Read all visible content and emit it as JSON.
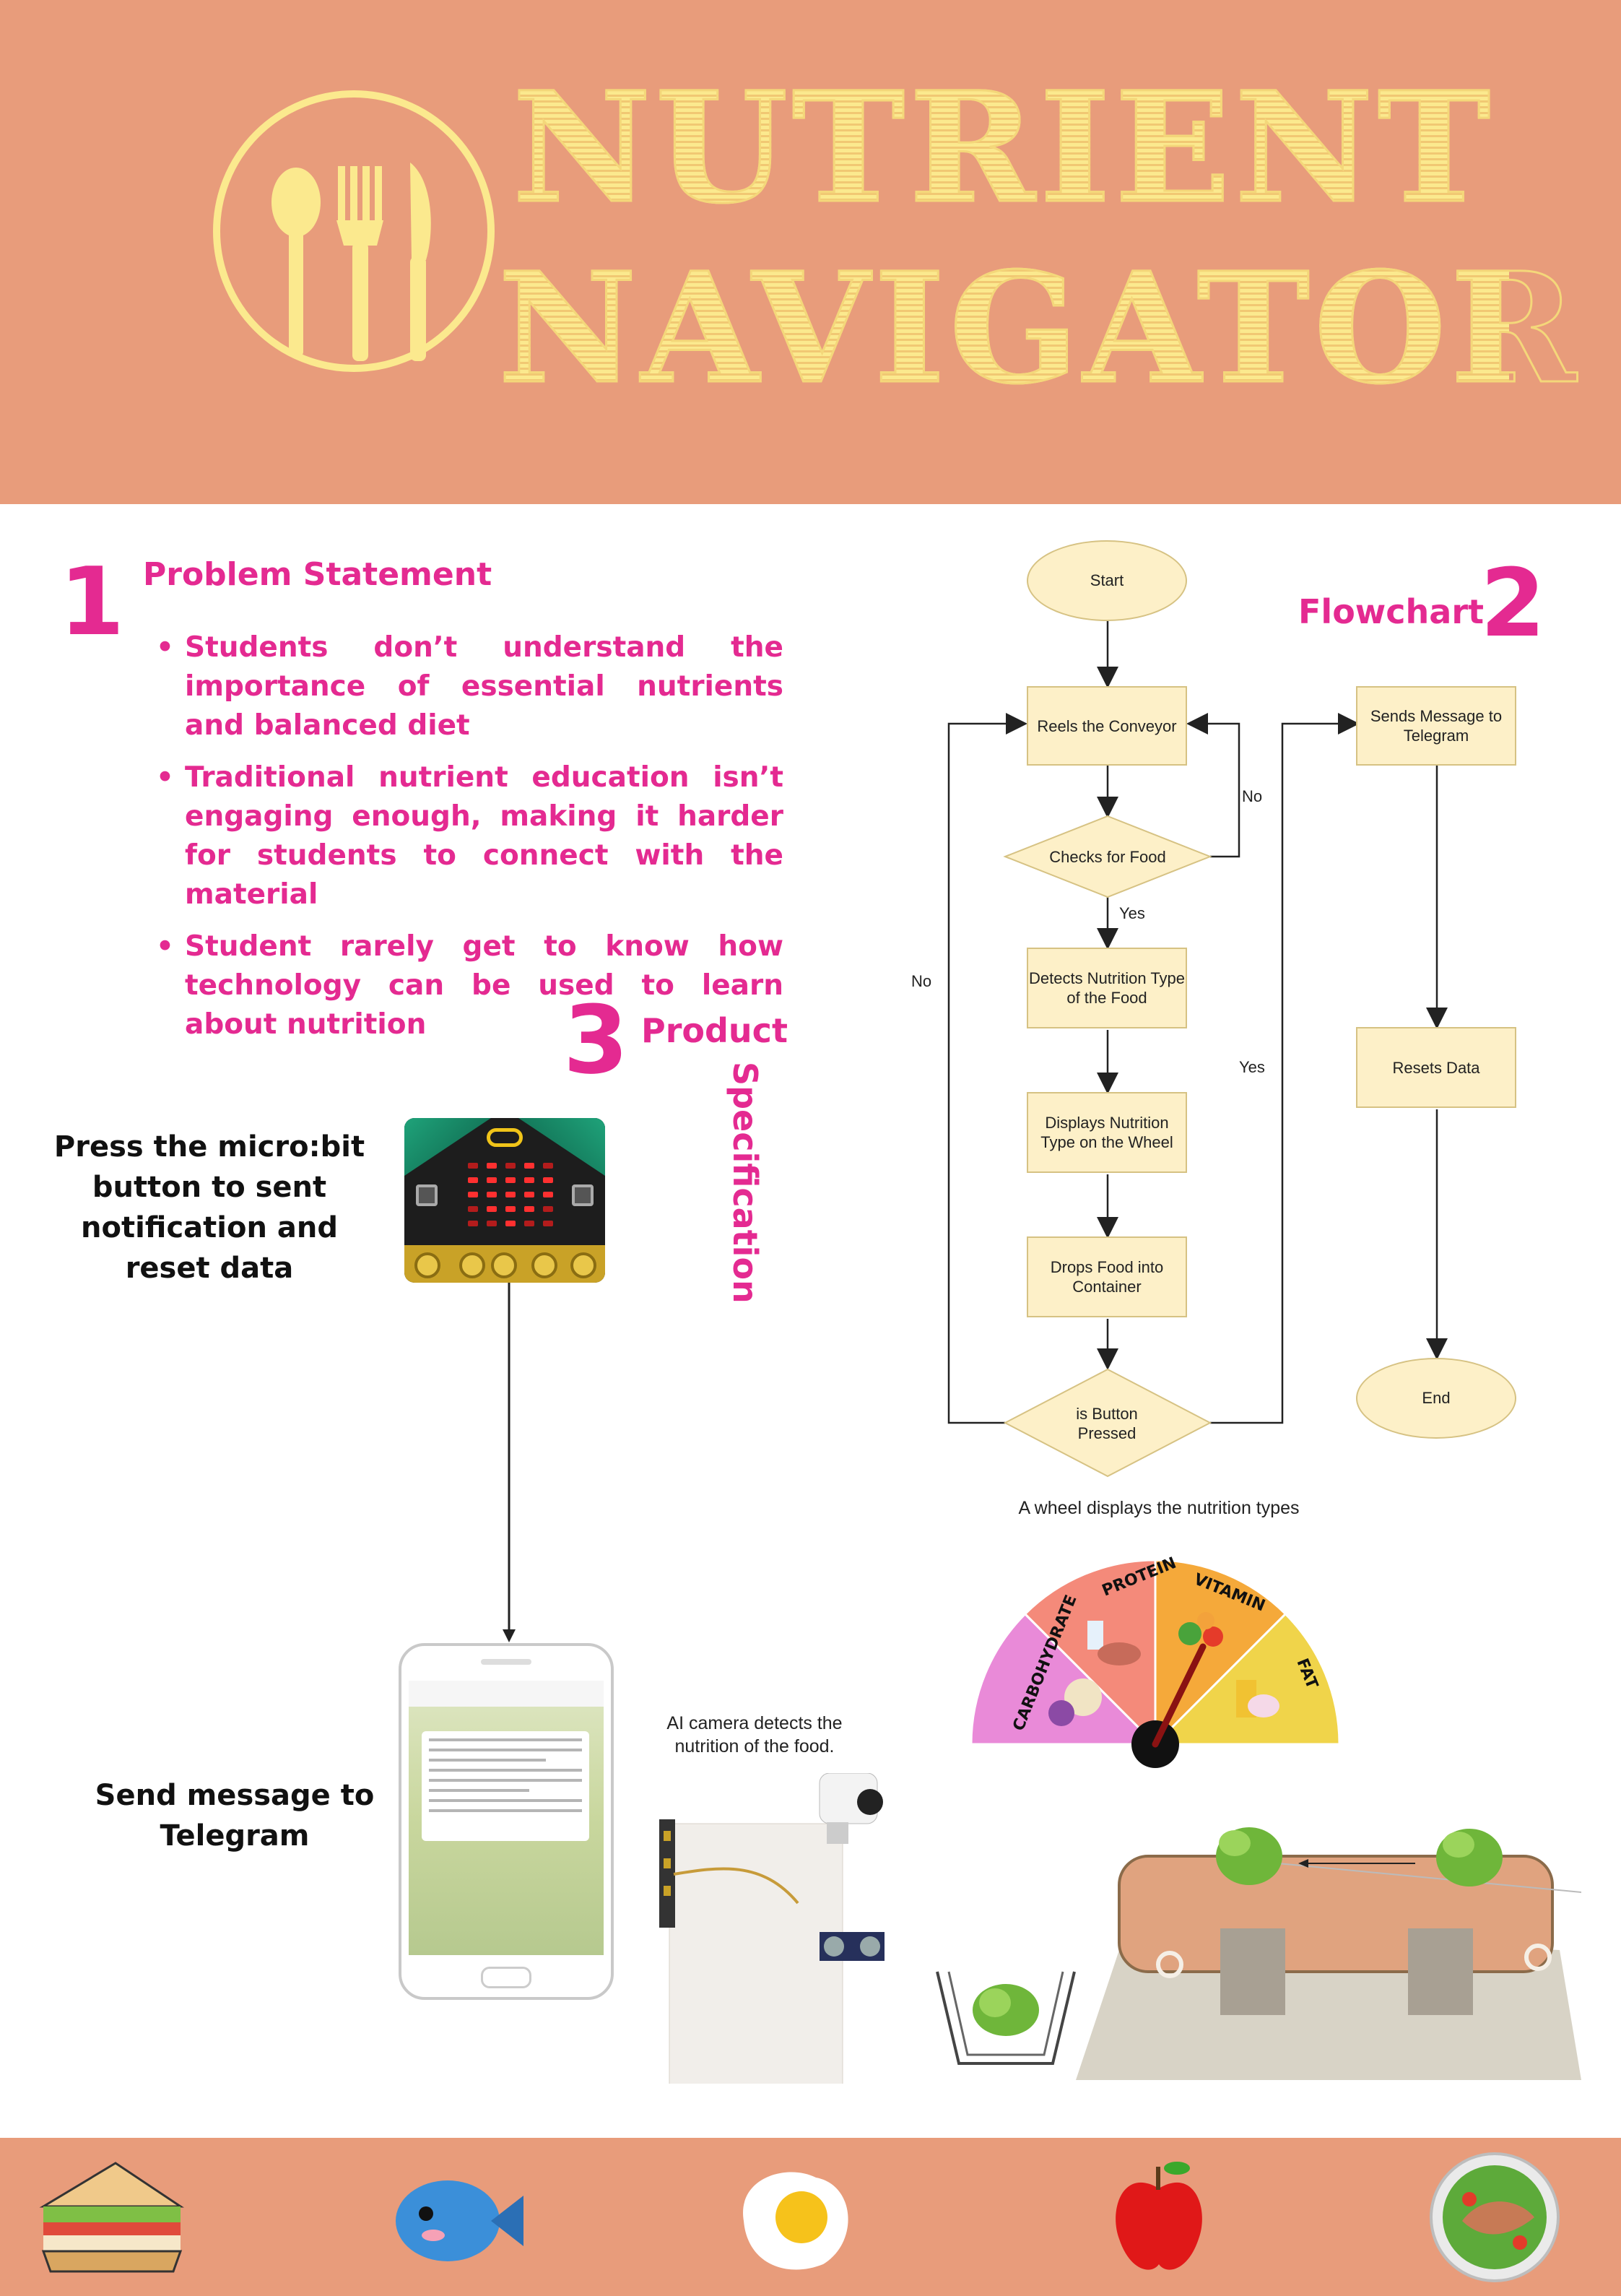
{
  "poster": {
    "title_line1": "NUTRIENT",
    "title_line2": "NAVIGATOR",
    "logo_icon": "utensils-circle-icon",
    "colors": {
      "header": "#e89c7b",
      "title": "#fbe98e",
      "accent": "#e42a91",
      "flow_fill": "#fdf0c8"
    }
  },
  "problem": {
    "number": "1",
    "heading": "Problem Statement",
    "bullets": [
      "Students don’t understand the importance of essential nutrients and balanced diet",
      "Traditional nutrient education isn’t engaging enough, making it harder for students to connect with the material",
      "Student rarely get to know how technology can be used to learn about nutrition"
    ]
  },
  "flowchart": {
    "number": "2",
    "heading": "Flowchart",
    "nodes": {
      "start": "Start",
      "reels": "Reels the Conveyor",
      "checks": "Checks for Food",
      "detects": "Detects Nutrition Type of the Food",
      "displays": "Displays Nutrition Type on the Wheel",
      "drops": "Drops Food into Container",
      "button": "is Button Pressed",
      "sends": "Sends Message to Telegram",
      "resets": "Resets Data",
      "end": "End"
    },
    "labels": {
      "no1": "No",
      "yes1": "Yes",
      "no2": "No",
      "yes2": "Yes"
    }
  },
  "product": {
    "number": "3",
    "heading_a": "Product",
    "heading_b": "Specification",
    "microbit_text": "Press the micro:bit button to sent notification and reset data",
    "telegram_text": "Send message to Telegram",
    "wheel_caption": "A wheel displays the nutrition types",
    "camera_caption": "AI camera detects the nutrition of the food.",
    "wheel_segments": [
      "CARBOHYDRATE",
      "PROTEIN",
      "VITAMIN",
      "FAT"
    ],
    "wheel_colors": [
      "#e98ad8",
      "#f48a7a",
      "#f5a93a",
      "#f0d44a"
    ]
  },
  "footer": {
    "icons": [
      "sandwich-icon",
      "fish-icon",
      "fried-egg-icon",
      "apple-icon",
      "salad-icon"
    ]
  }
}
